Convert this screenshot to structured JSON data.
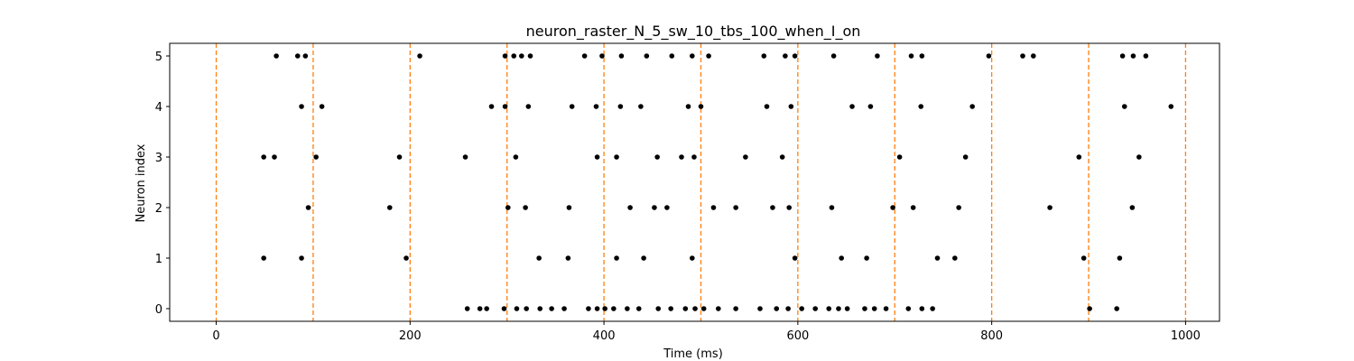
{
  "chart_data": {
    "type": "scatter",
    "title": "neuron_raster_N_5_sw_10_tbs_100_when_I_on",
    "xlabel": "Time (ms)",
    "ylabel": "Neuron index",
    "xlim": [
      -48,
      1035
    ],
    "ylim": [
      -0.25,
      5.25
    ],
    "x_ticks": [
      0,
      200,
      400,
      600,
      800,
      1000
    ],
    "y_ticks": [
      0,
      1,
      2,
      3,
      4,
      5
    ],
    "grid": false,
    "marker_color": "#000000",
    "vline_color": "#ff7f0e",
    "vlines": [
      0,
      100,
      200,
      300,
      400,
      500,
      600,
      700,
      800,
      900,
      1000
    ],
    "series": [
      {
        "neuron": 0,
        "x": [
          259,
          272,
          279,
          297,
          310,
          320,
          334,
          346,
          359,
          384,
          393,
          401,
          410,
          424,
          436,
          456,
          469,
          484,
          494,
          503,
          518,
          536,
          561,
          578,
          590,
          604,
          618,
          632,
          642,
          651,
          669,
          679,
          691,
          714,
          728,
          739,
          901,
          929
        ]
      },
      {
        "neuron": 1,
        "x": [
          49,
          88,
          196,
          333,
          363,
          413,
          441,
          491,
          597,
          645,
          671,
          744,
          762,
          895,
          932
        ]
      },
      {
        "neuron": 2,
        "x": [
          95,
          179,
          301,
          319,
          364,
          427,
          452,
          465,
          513,
          536,
          574,
          591,
          635,
          698,
          719,
          766,
          860,
          945
        ]
      },
      {
        "neuron": 3,
        "x": [
          49,
          60,
          103,
          189,
          257,
          309,
          393,
          413,
          455,
          480,
          493,
          546,
          584,
          705,
          773,
          890,
          952
        ]
      },
      {
        "neuron": 4,
        "x": [
          88,
          109,
          284,
          298,
          322,
          367,
          392,
          417,
          438,
          487,
          500,
          568,
          593,
          656,
          675,
          727,
          780,
          937,
          985
        ]
      },
      {
        "neuron": 5,
        "x": [
          62,
          84,
          92,
          210,
          298,
          307,
          315,
          324,
          380,
          398,
          418,
          444,
          470,
          491,
          508,
          565,
          587,
          597,
          637,
          682,
          717,
          728,
          797,
          832,
          843,
          935,
          946,
          959
        ]
      }
    ]
  }
}
